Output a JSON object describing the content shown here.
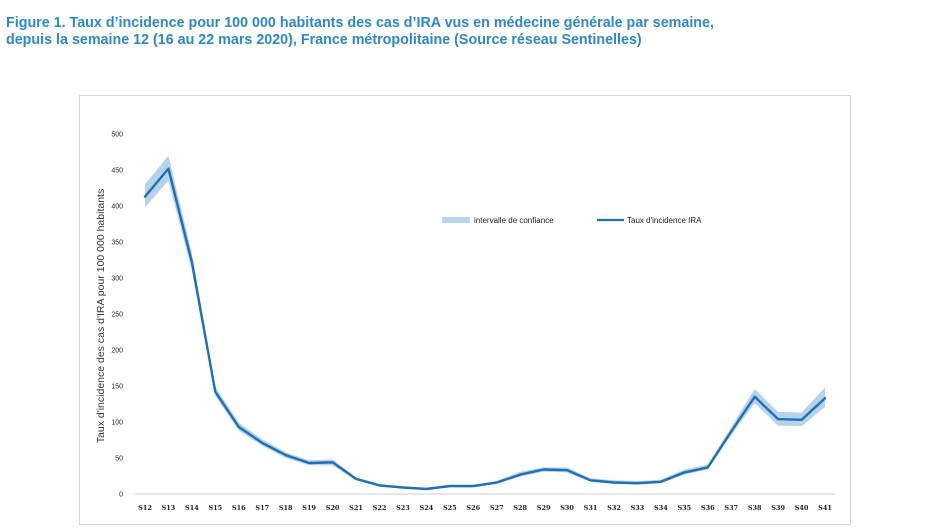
{
  "header": {
    "title_line1": "Figure 1. Taux d’incidence pour 100 000 habitants des cas d’IRA vus en médecine générale par semaine,",
    "title_line2": "depuis la semaine 12 (16 au 22 mars 2020), France métropolitaine (Source réseau Sentinelles)"
  },
  "colors": {
    "title": "#2e87c8",
    "line": "#1f6fb5",
    "band": "#b6d2ec"
  },
  "chart_data": {
    "type": "line",
    "title": "",
    "xlabel": "",
    "ylabel": "Taux d'incidence des cas d'IRA pour 100 000 habitants",
    "ylim": [
      0,
      500
    ],
    "yticks": [
      0,
      50,
      100,
      150,
      200,
      250,
      300,
      350,
      400,
      450,
      500
    ],
    "categories": [
      "S12",
      "S13",
      "S14",
      "S15",
      "S16",
      "S17",
      "S18",
      "S19",
      "S20",
      "S21",
      "S22",
      "S23",
      "S24",
      "S25",
      "S26",
      "S27",
      "S28",
      "S29",
      "S30",
      "S31",
      "S32",
      "S33",
      "S34",
      "S35",
      "S36",
      "S37",
      "S38",
      "S39",
      "S40",
      "S41"
    ],
    "series": [
      {
        "name": "Taux d'incidence IRA",
        "style": "line",
        "values": [
          413,
          452,
          322,
          142,
          93,
          71,
          54,
          43,
          44,
          21,
          12,
          9,
          7,
          11,
          11,
          16,
          27,
          34,
          33,
          19,
          16,
          15,
          17,
          30,
          37,
          87,
          135,
          104,
          103,
          133
        ]
      },
      {
        "name": "intervalle de confiance",
        "style": "band",
        "lower": [
          398,
          435,
          310,
          136,
          88,
          67,
          50,
          40,
          40,
          19,
          10,
          8,
          6,
          9,
          9,
          14,
          24,
          31,
          30,
          17,
          14,
          13,
          15,
          27,
          34,
          82,
          126,
          95,
          94,
          121
        ],
        "upper": [
          430,
          470,
          334,
          149,
          99,
          76,
          58,
          47,
          48,
          23,
          14,
          10,
          9,
          13,
          13,
          18,
          31,
          37,
          37,
          22,
          19,
          18,
          20,
          34,
          41,
          93,
          146,
          114,
          113,
          148
        ]
      }
    ],
    "legend": {
      "placement": "top-right"
    },
    "grid": false
  }
}
